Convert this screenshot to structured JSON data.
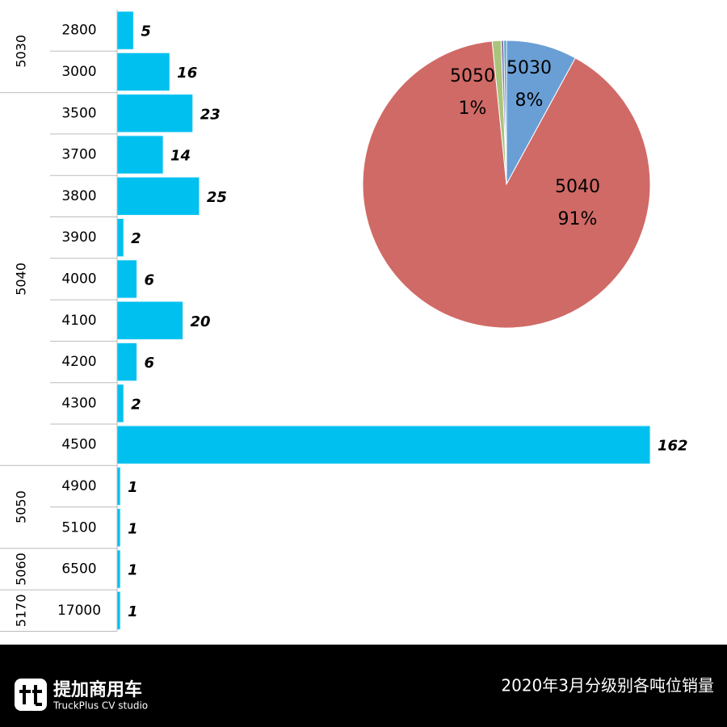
{
  "chart_data": [
    {
      "type": "bar",
      "title": "2020年3月分级别各吨位销量",
      "color": "#00c0f0",
      "groups": [
        {
          "name": "5030",
          "categories": [
            "2800",
            "3000"
          ],
          "values": [
            5,
            16
          ]
        },
        {
          "name": "5040",
          "categories": [
            "3500",
            "3700",
            "3800",
            "3900",
            "4000",
            "4100",
            "4200",
            "4300",
            "4500"
          ],
          "values": [
            23,
            14,
            25,
            2,
            6,
            20,
            6,
            2,
            162
          ]
        },
        {
          "name": "5050",
          "categories": [
            "4900",
            "5100"
          ],
          "values": [
            1,
            1
          ]
        },
        {
          "name": "5060",
          "categories": [
            "6500"
          ],
          "values": [
            1
          ]
        },
        {
          "name": "5170",
          "categories": [
            "17000"
          ],
          "values": [
            1
          ]
        }
      ]
    },
    {
      "type": "pie",
      "categories": [
        "5030",
        "5040",
        "5050",
        null,
        null
      ],
      "values": [
        8,
        91,
        1,
        0.3,
        0.3
      ],
      "value_labels": [
        "8%",
        "91%",
        "1%",
        null,
        null
      ],
      "colors": [
        "#6a9fd6",
        "#d06a66",
        "#a9c47c",
        "#8a78b0",
        "#4f9fc4"
      ]
    }
  ],
  "branding": {
    "name": "提加商用车",
    "tagline": "TruckPlus CV studio"
  }
}
